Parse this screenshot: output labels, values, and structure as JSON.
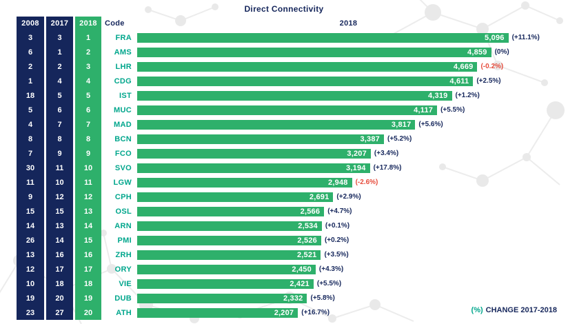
{
  "title": "Direct Connectivity",
  "columns": {
    "rank_2008": "2008",
    "rank_2017": "2017",
    "rank_2018": "2018",
    "code": "Code",
    "chart_year": "2018"
  },
  "footnote": {
    "symbol": "(%)",
    "label": "CHANGE 2017-2018"
  },
  "colors": {
    "navy": "#15265b",
    "green": "#2eb06b",
    "teal_code": "#00a68c",
    "negative_red": "#e64c3c",
    "bar_value_text": "#ffffff"
  },
  "chart_data": {
    "type": "bar",
    "orientation": "horizontal",
    "title": "Direct Connectivity",
    "value_year": "2018",
    "xlim": [
      0,
      5800
    ],
    "legend": "none",
    "footnote": "(%) CHANGE 2017-2018",
    "rows": [
      {
        "rank_2008": "3",
        "rank_2017": "3",
        "rank_2018": "1",
        "code": "FRA",
        "value": 5096,
        "value_label": "5,096",
        "change": "(+11.1%)",
        "negative": false
      },
      {
        "rank_2008": "6",
        "rank_2017": "1",
        "rank_2018": "2",
        "code": "AMS",
        "value": 4859,
        "value_label": "4,859",
        "change": "(0%)",
        "negative": false
      },
      {
        "rank_2008": "2",
        "rank_2017": "2",
        "rank_2018": "3",
        "code": "LHR",
        "value": 4669,
        "value_label": "4,669",
        "change": "(-0.2%)",
        "negative": true
      },
      {
        "rank_2008": "1",
        "rank_2017": "4",
        "rank_2018": "4",
        "code": "CDG",
        "value": 4611,
        "value_label": "4,611",
        "change": "(+2.5%)",
        "negative": false
      },
      {
        "rank_2008": "18",
        "rank_2017": "5",
        "rank_2018": "5",
        "code": "IST",
        "value": 4319,
        "value_label": "4,319",
        "change": "(+1.2%)",
        "negative": false
      },
      {
        "rank_2008": "5",
        "rank_2017": "6",
        "rank_2018": "6",
        "code": "MUC",
        "value": 4117,
        "value_label": "4,117",
        "change": "(+5.5%)",
        "negative": false
      },
      {
        "rank_2008": "4",
        "rank_2017": "7",
        "rank_2018": "7",
        "code": "MAD",
        "value": 3817,
        "value_label": "3,817",
        "change": "(+5.6%)",
        "negative": false
      },
      {
        "rank_2008": "8",
        "rank_2017": "8",
        "rank_2018": "8",
        "code": "BCN",
        "value": 3387,
        "value_label": "3,387",
        "change": "(+5.2%)",
        "negative": false
      },
      {
        "rank_2008": "7",
        "rank_2017": "9",
        "rank_2018": "9",
        "code": "FCO",
        "value": 3207,
        "value_label": "3,207",
        "change": "(+3.4%)",
        "negative": false
      },
      {
        "rank_2008": "30",
        "rank_2017": "11",
        "rank_2018": "10",
        "code": "SVO",
        "value": 3194,
        "value_label": "3,194",
        "change": "(+17.8%)",
        "negative": false
      },
      {
        "rank_2008": "11",
        "rank_2017": "10",
        "rank_2018": "11",
        "code": "LGW",
        "value": 2948,
        "value_label": "2,948",
        "change": "(-2.6%)",
        "negative": true
      },
      {
        "rank_2008": "9",
        "rank_2017": "12",
        "rank_2018": "12",
        "code": "CPH",
        "value": 2691,
        "value_label": "2,691",
        "change": "(+2.9%)",
        "negative": false
      },
      {
        "rank_2008": "15",
        "rank_2017": "15",
        "rank_2018": "13",
        "code": "OSL",
        "value": 2566,
        "value_label": "2,566",
        "change": "(+4.7%)",
        "negative": false
      },
      {
        "rank_2008": "14",
        "rank_2017": "13",
        "rank_2018": "14",
        "code": "ARN",
        "value": 2534,
        "value_label": "2,534",
        "change": "(+0.1%)",
        "negative": false
      },
      {
        "rank_2008": "26",
        "rank_2017": "14",
        "rank_2018": "15",
        "code": "PMI",
        "value": 2526,
        "value_label": "2,526",
        "change": "(+0.2%)",
        "negative": false
      },
      {
        "rank_2008": "13",
        "rank_2017": "16",
        "rank_2018": "16",
        "code": "ZRH",
        "value": 2521,
        "value_label": "2,521",
        "change": "(+3.5%)",
        "negative": false
      },
      {
        "rank_2008": "12",
        "rank_2017": "17",
        "rank_2018": "17",
        "code": "ORY",
        "value": 2450,
        "value_label": "2,450",
        "change": "(+4.3%)",
        "negative": false
      },
      {
        "rank_2008": "10",
        "rank_2017": "18",
        "rank_2018": "18",
        "code": "VIE",
        "value": 2421,
        "value_label": "2,421",
        "change": "(+5.5%)",
        "negative": false
      },
      {
        "rank_2008": "19",
        "rank_2017": "20",
        "rank_2018": "19",
        "code": "DUB",
        "value": 2332,
        "value_label": "2,332",
        "change": "(+5.8%)",
        "negative": false
      },
      {
        "rank_2008": "23",
        "rank_2017": "27",
        "rank_2018": "20",
        "code": "ATH",
        "value": 2207,
        "value_label": "2,207",
        "change": "(+16.7%)",
        "negative": false
      }
    ]
  }
}
